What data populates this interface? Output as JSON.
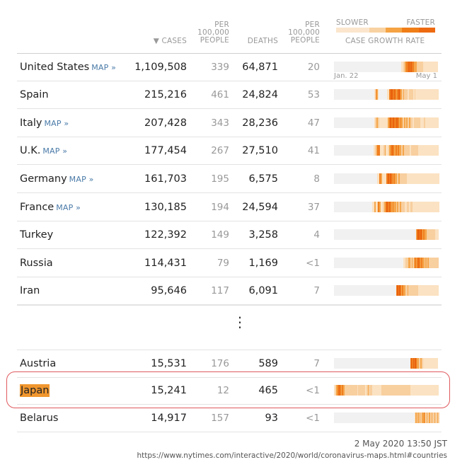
{
  "headers": {
    "cases": "▼ CASES",
    "cases_per": [
      "PER",
      "100,000",
      "PEOPLE"
    ],
    "deaths": "DEATHS",
    "deaths_per": [
      "PER",
      "100,000",
      "PEOPLE"
    ],
    "legend_slower": "SLOWER",
    "legend_faster": "FASTER",
    "growth": "CASE GROWTH RATE"
  },
  "legend_colors": [
    "#fbe6cd",
    "#fbe6cd",
    "#f8d2a3",
    "#f5a343",
    "#f07e18",
    "#ee6a10"
  ],
  "axis": {
    "start": "Jan. 22",
    "end": "May 1"
  },
  "map_label": "MAP »",
  "colors": {
    "empty": "#f1f1f1",
    "pale": "#fbe2c2",
    "light": "#f8cf9f",
    "mid": "#f5a64b",
    "strong": "#f07f1f",
    "deep": "#e9620e"
  },
  "rows": [
    {
      "name": "United States",
      "map": true,
      "cases": "1,109,508",
      "cases_per": "339",
      "deaths": "64,871",
      "deaths_per": "20",
      "spark": "eeeeeeeeeeeeeeeeeeeeeeeeeeeeeeeeeeeeeeeeeeeeeeeeeeeeeeeeeeeeeeeeeeeeeeeeeeeeeeppllmmssddsdsssmmmlllllllpppppppppppppppppp"
    },
    {
      "name": "Spain",
      "map": false,
      "cases": "215,216",
      "cases_per": "461",
      "deaths": "24,824",
      "deaths_per": "53",
      "spark": "eeeeeeeeeeeeeeeeeeeeeeeeeeeeeeeeeeepsmpeeeeeeeppsddsdsmsdsmlmlllpllllplpppppppppppppppppppp"
    },
    {
      "name": "Italy",
      "map": true,
      "cases": "207,428",
      "cases_per": "343",
      "deaths": "28,236",
      "deaths_per": "47",
      "spark": "eeeeeeeeeeeeeeeeeeeeeeeeeeeeeeeeplmlpppppppmsdsdssdsmsmlmlmlmllplllllppplppppppppppp"
    },
    {
      "name": "U.K.",
      "map": true,
      "cases": "177,454",
      "cases_per": "267",
      "deaths": "27,510",
      "deaths_per": "41",
      "spark": "eeeeeeeeeeeeeeeeeeeeeeeeeeeeeeeeeplmssppplmpplmsdsmsmsmmlmlllllpllllllppppppppppppppppp"
    },
    {
      "name": "Germany",
      "map": true,
      "cases": "161,703",
      "cases_per": "195",
      "deaths": "6,575",
      "deaths_per": "8",
      "spark": "eeeeeeeeeeeeeeeeeeeeeeeeeeeeeeeeeeeeppsmppppsdsdsmsmmlmllllllppppppppppppppppppppppppppp"
    },
    {
      "name": "France",
      "map": true,
      "cases": "130,185",
      "cases_per": "194",
      "deaths": "24,594",
      "deaths_per": "37",
      "spark": "eeeeeeeeeeeeeeeeeeeeeeeeeeeeeeeeppmplsmpplmsdsdsmsmmlmlmlllppllpllpppppppppppppppppppppp"
    },
    {
      "name": "Turkey",
      "map": false,
      "cases": "122,392",
      "cases_per": "149",
      "deaths": "3,258",
      "deaths_per": "4",
      "spark": "eeeeeeeeeeeeeeeeeeeeeeeeeeeeeeeeeeeeeeeeeeeeeeeeeeeeeeeeeeeeeeeeeeeeeeeeeeeeeeeeeeeeemsddsdsmsmmlllllllllpppp"
    },
    {
      "name": "Russia",
      "map": false,
      "cases": "114,431",
      "cases_per": "79",
      "deaths": "1,169",
      "deaths_per": "<1",
      "spark": "eeeeeeeeeeeeeeeeeeeeeeeeeeeeeeeeeeeeeeeeeeeeeeeeeeeeeeeeeeeeeeeeeepplllmmlmlmsmsdsmsmmlmlmllllllllll"
    },
    {
      "name": "Iran",
      "map": false,
      "cases": "95,646",
      "cases_per": "117",
      "deaths": "6,091",
      "deaths_per": "7",
      "spark": "eeeeeeeeeeeeeeeeeeeeeeeeeeeeeeeeeeeeeeeeeeeeeeeeeeeeeeeeeeesdsdsmsmmllmlllllllllpppppppppppppppppppp"
    },
    {
      "name": "Austria",
      "map": false,
      "cases": "15,531",
      "cases_per": "176",
      "deaths": "589",
      "deaths_per": "7",
      "spark": "eeeeeeeeeeeeeeeeeeeeeeeeeeeeeeeeeeeeeeeeeeeeeeeeeeeeeeeeeeeeeeeeeeeeeeeeeeeeeeeeesdsdsdsmmllmllpppppppppppppppp"
    },
    {
      "name": "Japan",
      "map": false,
      "cases": "15,241",
      "cases_per": "12",
      "deaths": "465",
      "deaths_per": "<1",
      "spark": "plmsdsmsmlllllllllllpllllllplmlllpppppppplllllllllllllllllllllllllpppppppppppppppppppppppp"
    },
    {
      "name": "Belarus",
      "map": false,
      "cases": "14,917",
      "cases_per": "157",
      "deaths": "93",
      "deaths_per": "<1",
      "spark": "eeeeeeeeeeeeeeeeeeeeeeeeeeeeeeeeeeeeeeeeeeeeeeeeeeeeeeeeeeeeeeeeeeeeeeeeeeeeeeeeeepmlmlmlmmsmlmlmmlmllmllml"
    }
  ],
  "ellipsis": "⋮",
  "footer": {
    "timestamp": "2 May 2020 13:50 JST",
    "url": "https://www.nytimes.com/interactive/2020/world/coronavirus-maps.html#countries"
  }
}
